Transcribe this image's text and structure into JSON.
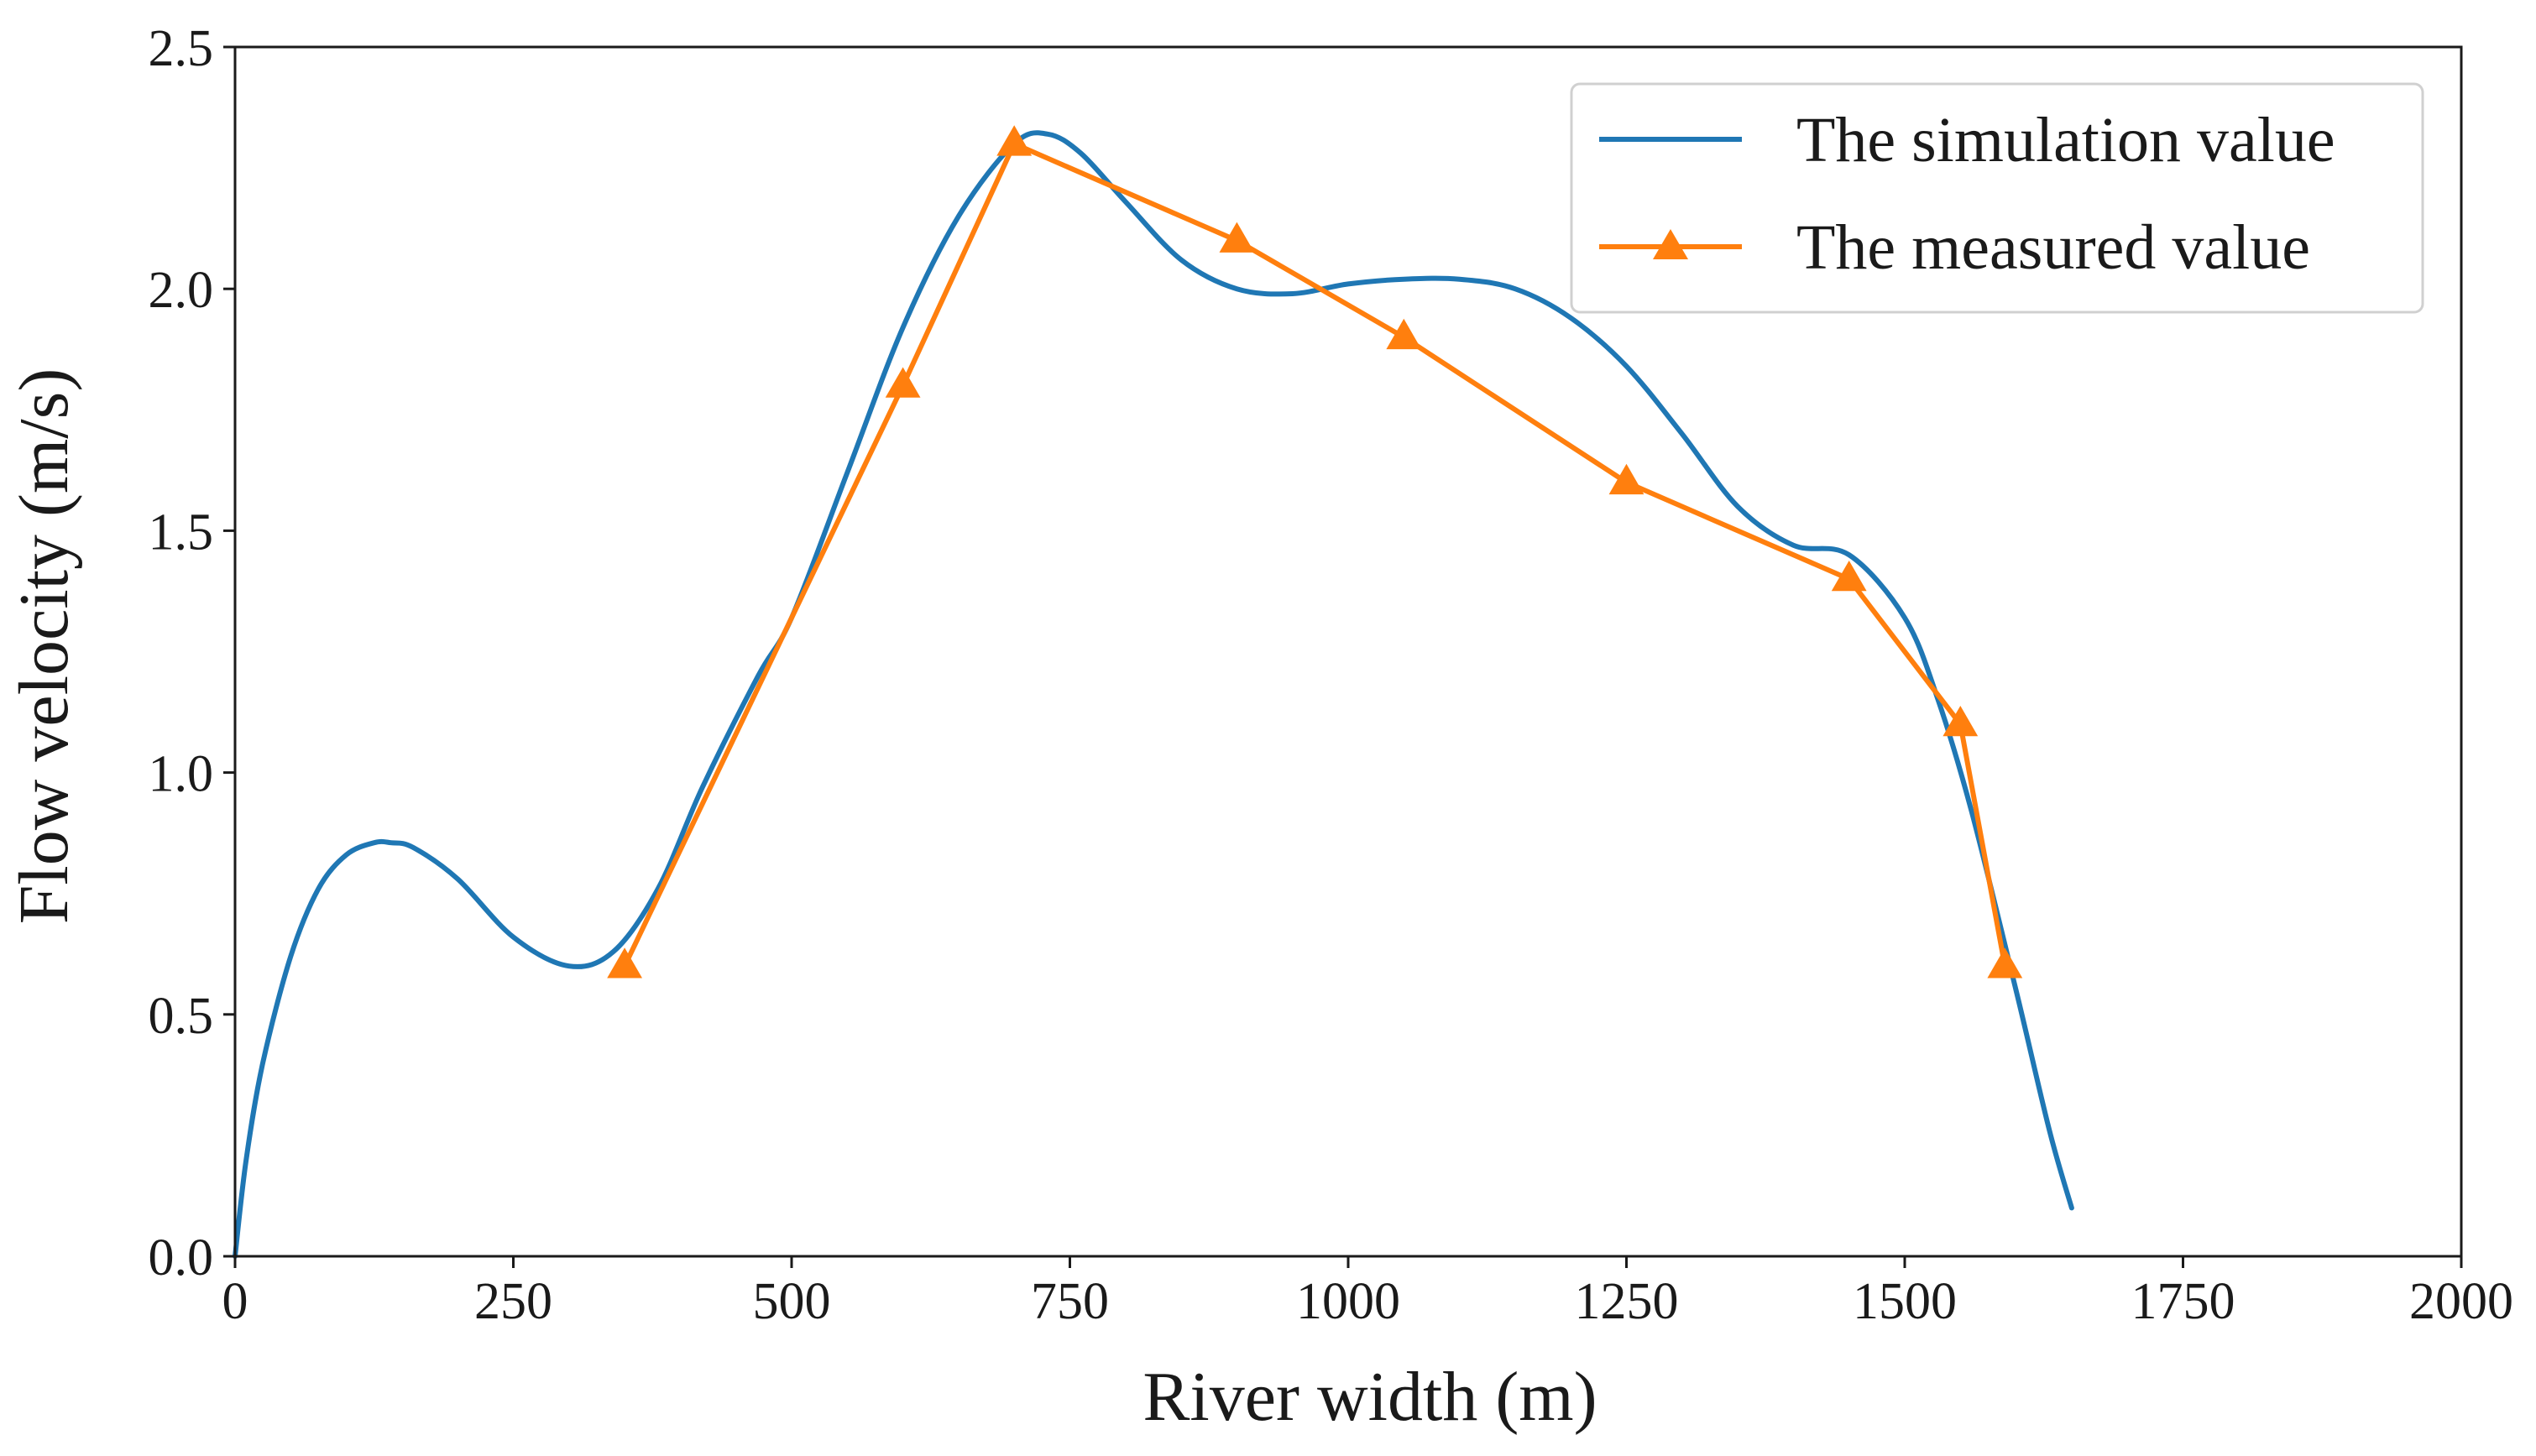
{
  "chart_data": {
    "type": "line",
    "title": "",
    "xlabel": "River width (m)",
    "ylabel": "Flow velocity (m/s)",
    "xlim": [
      0,
      2000
    ],
    "ylim": [
      0,
      2.5
    ],
    "x_ticks": [
      0,
      250,
      500,
      750,
      1000,
      1250,
      1500,
      1750,
      2000
    ],
    "x_tick_labels": [
      "0",
      "250",
      "500",
      "750",
      "1000",
      "1250",
      "1500",
      "1750",
      "2000"
    ],
    "y_ticks": [
      0.0,
      0.5,
      1.0,
      1.5,
      2.0,
      2.5
    ],
    "y_tick_labels": [
      "0.0",
      "0.5",
      "1.0",
      "1.5",
      "2.0",
      "2.5"
    ],
    "grid": false,
    "legend_position": "top-right",
    "series": [
      {
        "name": "The simulation value",
        "color": "#1f77b4",
        "marker": "none",
        "x": [
          0,
          10,
          25,
          50,
          75,
          100,
          125,
          140,
          160,
          200,
          250,
          300,
          340,
          380,
          420,
          470,
          500,
          550,
          600,
          650,
          700,
          730,
          760,
          800,
          850,
          900,
          950,
          1000,
          1050,
          1100,
          1150,
          1200,
          1250,
          1300,
          1350,
          1400,
          1450,
          1500,
          1530,
          1560,
          1600,
          1630,
          1650
        ],
        "y": [
          0.0,
          0.2,
          0.4,
          0.62,
          0.76,
          0.83,
          0.855,
          0.855,
          0.845,
          0.78,
          0.66,
          0.6,
          0.63,
          0.76,
          0.97,
          1.2,
          1.32,
          1.62,
          1.92,
          2.15,
          2.3,
          2.32,
          2.28,
          2.18,
          2.06,
          2.0,
          1.99,
          2.01,
          2.02,
          2.02,
          2.0,
          1.94,
          1.84,
          1.7,
          1.55,
          1.47,
          1.45,
          1.32,
          1.15,
          0.92,
          0.55,
          0.26,
          0.1
        ]
      },
      {
        "name": "The measured value",
        "color": "#ff7f0e",
        "marker": "triangle",
        "x": [
          350,
          600,
          700,
          900,
          1050,
          1250,
          1450,
          1550,
          1590
        ],
        "y": [
          0.6,
          1.8,
          2.3,
          2.1,
          1.9,
          1.6,
          1.4,
          1.1,
          0.6
        ]
      }
    ]
  }
}
